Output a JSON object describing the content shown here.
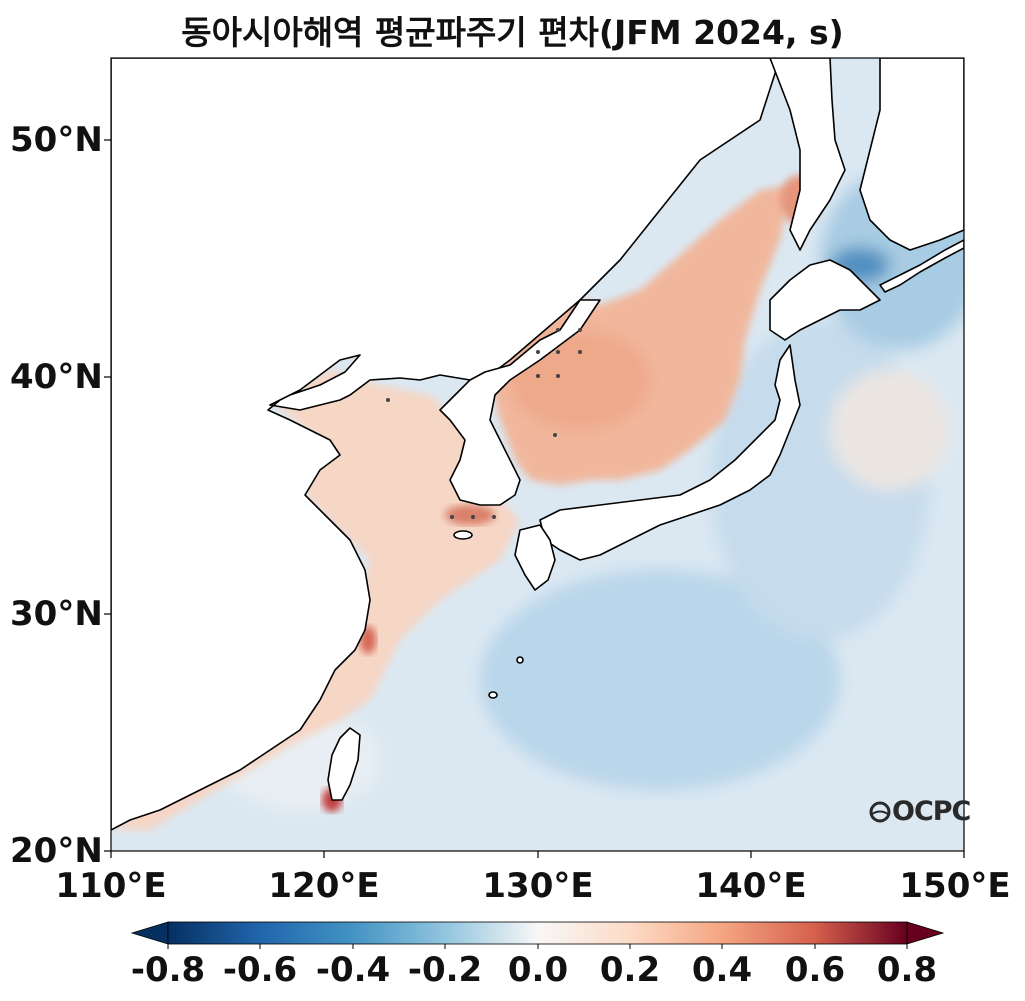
{
  "title": "동아시아해역 평균파주기 편차(JFM 2024, s)",
  "map": {
    "lon_range": [
      110,
      150
    ],
    "lat_range": [
      20,
      53.5
    ],
    "xticks": [
      "110°E",
      "120°E",
      "130°E",
      "140°E",
      "150°E"
    ],
    "yticks": [
      "20°N",
      "30°N",
      "40°N",
      "50°N"
    ]
  },
  "colorbar": {
    "colormap": "RdBu_r",
    "range": [
      -0.8,
      0.8
    ],
    "extend": "both",
    "ticks": [
      "-0.8",
      "-0.6",
      "-0.4",
      "-0.2",
      "0.0",
      "0.2",
      "0.4",
      "0.6",
      "0.8"
    ],
    "colors": {
      "neg_max": "#053061",
      "neg_mid": "#4393c3",
      "zero": "#f7f7f7",
      "pos_mid": "#f4a582",
      "pos_max": "#67001f"
    }
  },
  "logo": "OCPC"
}
